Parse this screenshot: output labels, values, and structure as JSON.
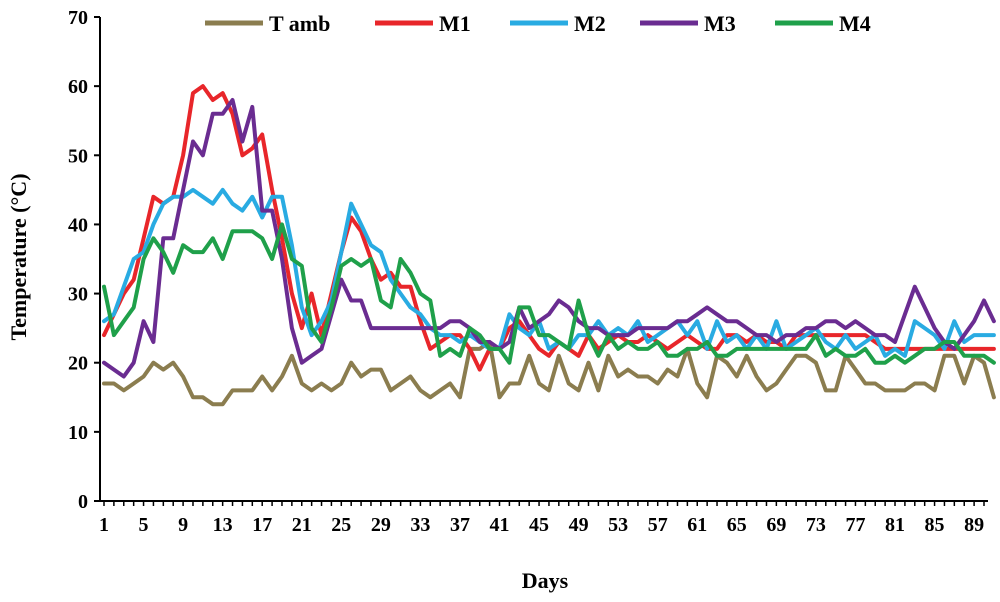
{
  "chart_data": {
    "type": "line",
    "title": "",
    "xlabel": "Days",
    "ylabel": "Temperature (°C)",
    "ylim": [
      0,
      70
    ],
    "yticks": [
      0,
      10,
      20,
      30,
      40,
      50,
      60,
      70
    ],
    "xlim": [
      1,
      90
    ],
    "xticks": [
      1,
      5,
      9,
      13,
      17,
      21,
      25,
      29,
      33,
      37,
      41,
      45,
      49,
      53,
      57,
      61,
      65,
      69,
      73,
      77,
      81,
      85,
      89
    ],
    "legend_position": "top",
    "series": [
      {
        "name": "T amb",
        "color": "#8B7D4F",
        "values": [
          17,
          17,
          16,
          17,
          18,
          20,
          19,
          20,
          18,
          15,
          15,
          14,
          14,
          16,
          16,
          16,
          18,
          16,
          18,
          21,
          17,
          16,
          17,
          16,
          17,
          20,
          18,
          19,
          19,
          16,
          17,
          18,
          16,
          15,
          16,
          17,
          15,
          22,
          22,
          23,
          15,
          17,
          17,
          21,
          17,
          16,
          21,
          17,
          16,
          20,
          16,
          21,
          18,
          19,
          18,
          18,
          17,
          19,
          18,
          22,
          17,
          15,
          21,
          20,
          18,
          21,
          18,
          16,
          17,
          19,
          21,
          21,
          20,
          16,
          16,
          21,
          19,
          17,
          17,
          16,
          16,
          16,
          17,
          17,
          16,
          21,
          21,
          17,
          21,
          20,
          15
        ]
      },
      {
        "name": "M1",
        "color": "#E8262A",
        "values": [
          24,
          27,
          30,
          32,
          38,
          44,
          43,
          44,
          50,
          59,
          60,
          58,
          59,
          56,
          50,
          51,
          53,
          45,
          38,
          30,
          25,
          30,
          24,
          30,
          36,
          41,
          39,
          35,
          32,
          33,
          31,
          31,
          26,
          22,
          23,
          24,
          24,
          22,
          19,
          22,
          22,
          25,
          26,
          24,
          22,
          21,
          23,
          22,
          21,
          24,
          22,
          23,
          24,
          23,
          23,
          24,
          23,
          22,
          23,
          24,
          23,
          22,
          22,
          24,
          24,
          23,
          24,
          23,
          23,
          22,
          24,
          24,
          24,
          24,
          24,
          24,
          24,
          24,
          23,
          22,
          22,
          22,
          22,
          22,
          22,
          22,
          22,
          22,
          22,
          22,
          22
        ]
      },
      {
        "name": "M2",
        "color": "#29ABE2",
        "values": [
          26,
          27,
          31,
          35,
          36,
          40,
          43,
          44,
          44,
          45,
          44,
          43,
          45,
          43,
          42,
          44,
          41,
          44,
          44,
          37,
          28,
          24,
          26,
          29,
          36,
          43,
          40,
          37,
          36,
          32,
          30,
          28,
          27,
          25,
          24,
          24,
          23,
          24,
          23,
          22,
          22,
          27,
          25,
          24,
          26,
          22,
          23,
          22,
          24,
          24,
          26,
          24,
          25,
          24,
          26,
          23,
          24,
          25,
          26,
          24,
          26,
          22,
          26,
          23,
          24,
          22,
          24,
          22,
          26,
          22,
          23,
          24,
          25,
          23,
          22,
          24,
          22,
          23,
          24,
          21,
          22,
          21,
          26,
          25,
          24,
          22,
          26,
          23,
          24,
          24,
          24
        ]
      },
      {
        "name": "M3",
        "color": "#6A2C91",
        "values": [
          20,
          19,
          18,
          20,
          26,
          23,
          38,
          38,
          45,
          52,
          50,
          56,
          56,
          58,
          52,
          57,
          42,
          42,
          35,
          25,
          20,
          21,
          22,
          27,
          32,
          29,
          29,
          25,
          25,
          25,
          25,
          25,
          25,
          25,
          25,
          26,
          26,
          25,
          23,
          23,
          22,
          23,
          28,
          25,
          26,
          27,
          29,
          28,
          26,
          25,
          25,
          24,
          24,
          24,
          25,
          25,
          25,
          25,
          26,
          26,
          27,
          28,
          27,
          26,
          26,
          25,
          24,
          24,
          23,
          24,
          24,
          25,
          25,
          26,
          26,
          25,
          26,
          25,
          24,
          24,
          23,
          27,
          31,
          28,
          25,
          23,
          22,
          24,
          26,
          29,
          26
        ]
      },
      {
        "name": "M4",
        "color": "#1FA04A",
        "values": [
          31,
          24,
          26,
          28,
          35,
          38,
          36,
          33,
          37,
          36,
          36,
          38,
          35,
          39,
          39,
          39,
          38,
          35,
          40,
          35,
          34,
          25,
          23,
          28,
          34,
          35,
          34,
          35,
          29,
          28,
          35,
          33,
          30,
          29,
          21,
          22,
          21,
          25,
          24,
          22,
          22,
          20,
          28,
          28,
          24,
          24,
          23,
          22,
          29,
          24,
          21,
          24,
          22,
          23,
          22,
          22,
          23,
          21,
          21,
          22,
          22,
          23,
          21,
          21,
          22,
          22,
          22,
          22,
          22,
          22,
          22,
          22,
          24,
          21,
          22,
          21,
          21,
          22,
          20,
          20,
          21,
          20,
          21,
          22,
          22,
          23,
          23,
          21,
          21,
          21,
          20
        ]
      }
    ]
  }
}
